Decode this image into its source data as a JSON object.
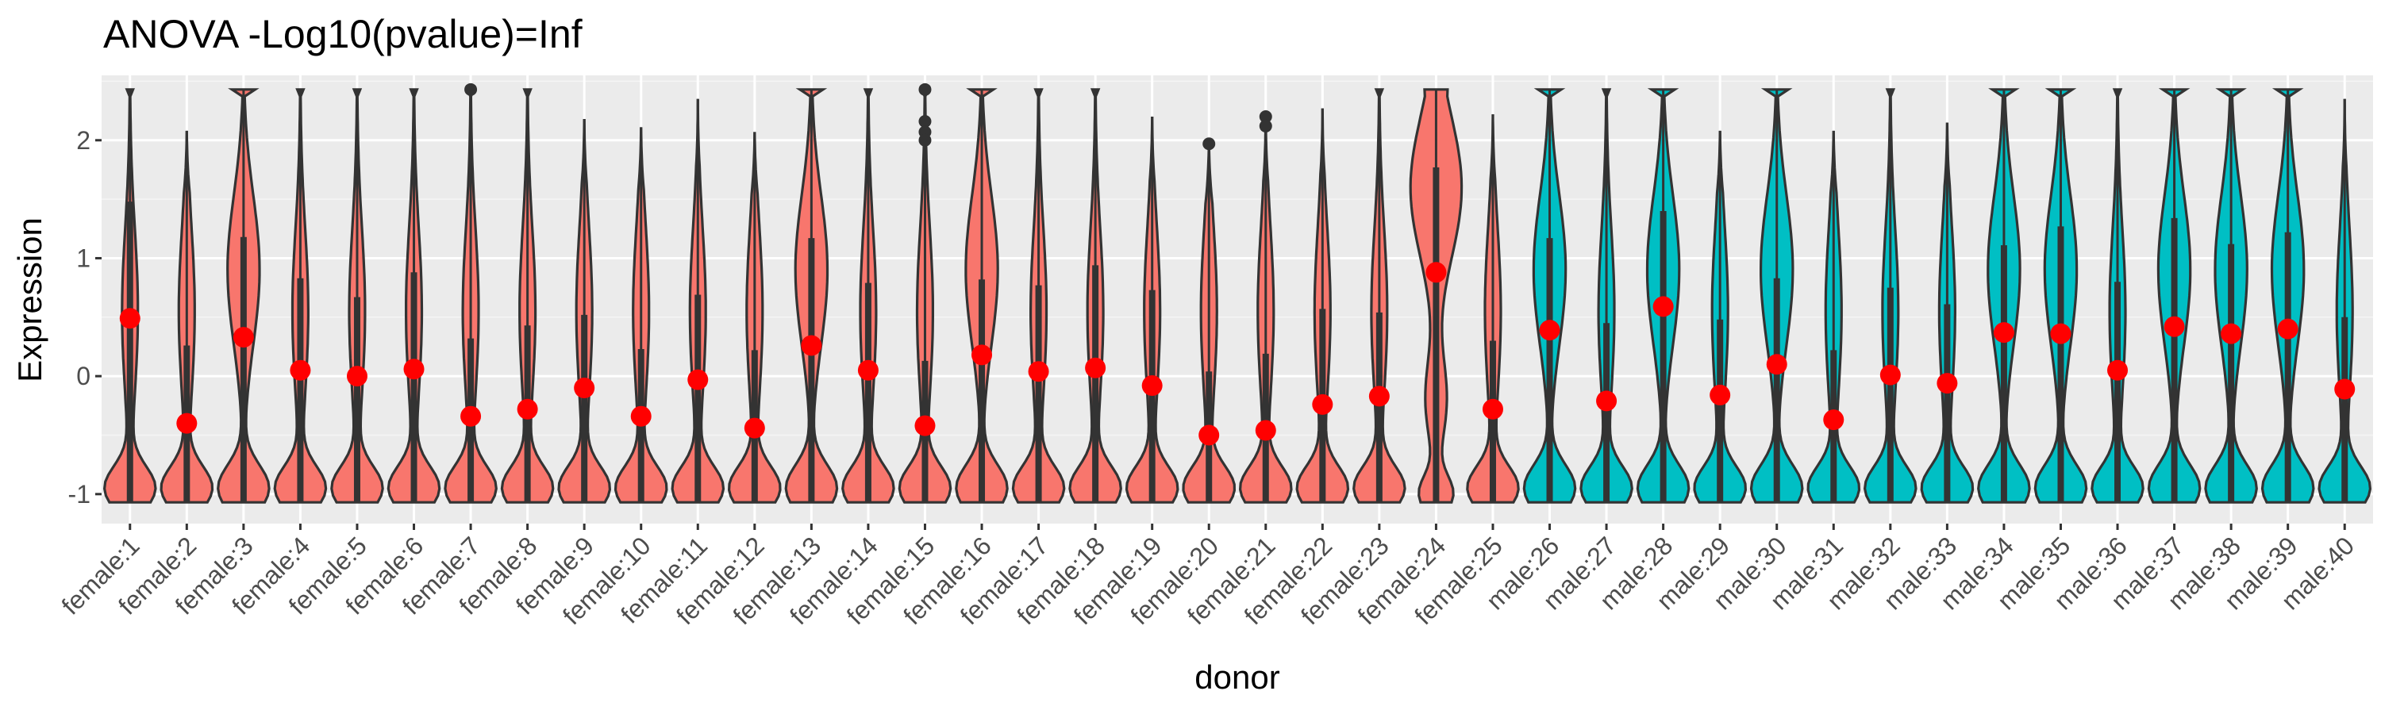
{
  "chart_data": {
    "type": "violin",
    "title": "ANOVA -Log10(pvalue)=Inf",
    "xlabel": "donor",
    "ylabel": "Expression",
    "ylim": [
      -1.25,
      2.55
    ],
    "yticks": [
      -1,
      0,
      1,
      2
    ],
    "ytick_labels": [
      "-1",
      "0",
      "1",
      "2"
    ],
    "grid": true,
    "legend": "none",
    "colors": {
      "female": "#F8766D",
      "male": "#00BFC4",
      "mean_point": "#FF0000",
      "panel": "#EBEBEB",
      "outline": "#333333"
    },
    "categories": [
      "female:1",
      "female:2",
      "female:3",
      "female:4",
      "female:5",
      "female:6",
      "female:7",
      "female:8",
      "female:9",
      "female:10",
      "female:11",
      "female:12",
      "female:13",
      "female:14",
      "female:15",
      "female:16",
      "female:17",
      "female:18",
      "female:19",
      "female:20",
      "female:21",
      "female:22",
      "female:23",
      "female:24",
      "female:25",
      "male:26",
      "male:27",
      "male:28",
      "male:29",
      "male:30",
      "male:31",
      "male:32",
      "male:33",
      "male:34",
      "male:35",
      "male:36",
      "male:37",
      "male:38",
      "male:39",
      "male:40"
    ],
    "groups": [
      "female",
      "female",
      "female",
      "female",
      "female",
      "female",
      "female",
      "female",
      "female",
      "female",
      "female",
      "female",
      "female",
      "female",
      "female",
      "female",
      "female",
      "female",
      "female",
      "female",
      "female",
      "female",
      "female",
      "female",
      "female",
      "male",
      "male",
      "male",
      "male",
      "male",
      "male",
      "male",
      "male",
      "male",
      "male",
      "male",
      "male",
      "male",
      "male",
      "male"
    ],
    "means": [
      0.49,
      -0.4,
      0.33,
      0.05,
      0.0,
      0.06,
      -0.34,
      -0.28,
      -0.1,
      -0.34,
      -0.03,
      -0.44,
      0.26,
      0.05,
      -0.42,
      0.18,
      0.04,
      0.07,
      -0.08,
      -0.5,
      -0.46,
      -0.24,
      -0.17,
      0.88,
      -0.28,
      0.39,
      -0.21,
      0.59,
      -0.16,
      0.1,
      -0.37,
      0.01,
      -0.06,
      0.37,
      0.36,
      0.05,
      0.42,
      0.36,
      0.4,
      -0.11
    ],
    "medians": [
      -1.07,
      -1.07,
      -1.07,
      -1.07,
      -1.07,
      -1.07,
      -1.07,
      -1.07,
      -1.07,
      -1.07,
      -1.07,
      -1.07,
      -1.07,
      -1.07,
      -1.07,
      -1.07,
      -1.07,
      -1.07,
      -1.07,
      -1.07,
      -1.07,
      -1.07,
      -1.07,
      1.22,
      -1.07,
      0.3,
      -1.07,
      0.55,
      -1.07,
      -0.55,
      -1.07,
      -1.07,
      -1.07,
      0.0,
      0.0,
      -1.07,
      0.35,
      0.1,
      0.25,
      -1.07
    ],
    "q3": [
      1.48,
      0.26,
      1.18,
      0.83,
      0.67,
      0.88,
      0.32,
      0.43,
      0.52,
      0.23,
      0.69,
      0.22,
      1.17,
      0.79,
      0.13,
      0.82,
      0.77,
      0.94,
      0.73,
      0.04,
      0.19,
      0.57,
      0.54,
      1.77,
      0.3,
      1.17,
      0.45,
      1.4,
      0.48,
      0.83,
      0.22,
      0.75,
      0.61,
      1.11,
      1.27,
      0.8,
      1.34,
      1.12,
      1.22,
      0.5
    ],
    "maxima": [
      2.43,
      2.08,
      2.43,
      2.43,
      2.43,
      2.43,
      2.43,
      2.43,
      2.18,
      2.11,
      2.35,
      2.07,
      2.43,
      2.43,
      2.43,
      2.43,
      2.43,
      2.43,
      2.2,
      1.97,
      2.2,
      2.27,
      2.43,
      2.43,
      2.22,
      2.43,
      2.43,
      2.43,
      2.08,
      2.43,
      2.08,
      2.43,
      2.15,
      2.43,
      2.43,
      2.43,
      2.43,
      2.43,
      2.43,
      2.35
    ],
    "outliers": [
      [],
      [],
      [],
      [],
      [],
      [],
      [
        2.43
      ],
      [],
      [],
      [],
      [],
      [],
      [],
      [],
      [
        2.43,
        2.16,
        2.07,
        2.0
      ],
      [],
      [],
      [],
      [],
      [
        1.97
      ],
      [
        2.2,
        2.12
      ],
      [],
      [],
      [],
      [],
      [],
      [],
      [],
      [],
      [],
      [],
      [],
      [],
      [],
      [],
      [],
      [],
      [],
      [],
      []
    ],
    "shape_profile": [
      "low",
      "low",
      "mid",
      "low",
      "low",
      "low",
      "low",
      "low",
      "low",
      "low",
      "low",
      "low",
      "mid",
      "low",
      "low",
      "mid",
      "low",
      "low",
      "low",
      "low",
      "low",
      "low",
      "low",
      "high",
      "low",
      "mid",
      "low",
      "mid",
      "low",
      "mid",
      "low",
      "low",
      "low",
      "mid",
      "mid",
      "low",
      "mid",
      "mid",
      "mid",
      "low"
    ]
  }
}
